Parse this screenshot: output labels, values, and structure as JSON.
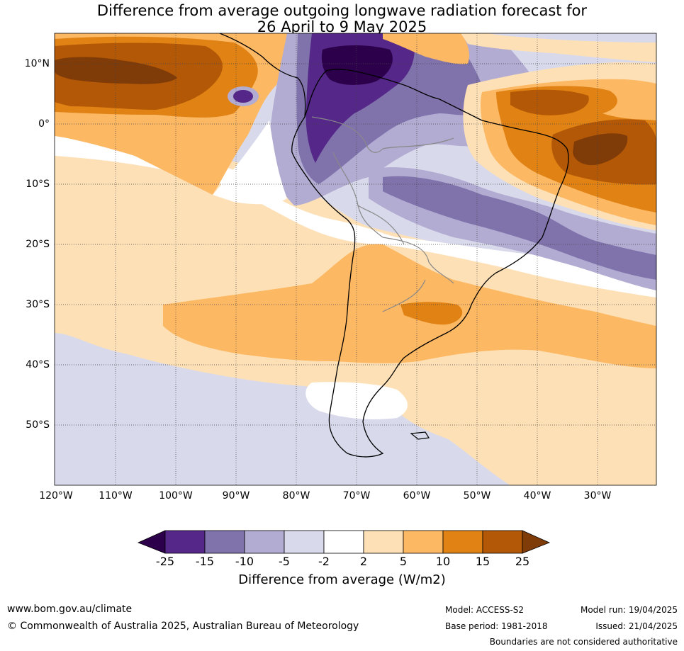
{
  "title": {
    "line1": "Difference from average outgoing longwave radiation forecast for",
    "line2": "26 April to 9 May 2025"
  },
  "map": {
    "lat_labels": [
      "10°N",
      "0°",
      "10°S",
      "20°S",
      "30°S",
      "40°S",
      "50°S"
    ],
    "lon_labels": [
      "120°W",
      "110°W",
      "100°W",
      "90°W",
      "80°W",
      "70°W",
      "60°W",
      "50°W",
      "40°W",
      "30°W"
    ],
    "colors": {
      "neg25": "#2d004b",
      "neg15": "#542788",
      "neg10": "#8073ac",
      "neg5": "#b2abd2",
      "neg2": "#d8daeb",
      "zero": "#ffffff",
      "pos2": "#fee0b6",
      "pos5": "#fdb863",
      "pos10": "#e08214",
      "pos15": "#b35806",
      "pos25": "#7f3b08"
    }
  },
  "colorbar": {
    "tick_labels": [
      "-25",
      "-15",
      "-10",
      "-5",
      "-2",
      "2",
      "5",
      "10",
      "15",
      "25"
    ],
    "title": "Difference from average (W/m2)"
  },
  "footer": {
    "website": "www.bom.gov.au/climate",
    "copyright": "© Commonwealth of Australia 2025, Australian Bureau of Meteorology",
    "model": "Model: ACCESS-S2",
    "base_period": "Base period: 1981-2018",
    "model_run": "Model run: 19/04/2025",
    "issued": "Issued: 21/04/2025",
    "disclaimer": "Boundaries are not considered authoritative"
  }
}
